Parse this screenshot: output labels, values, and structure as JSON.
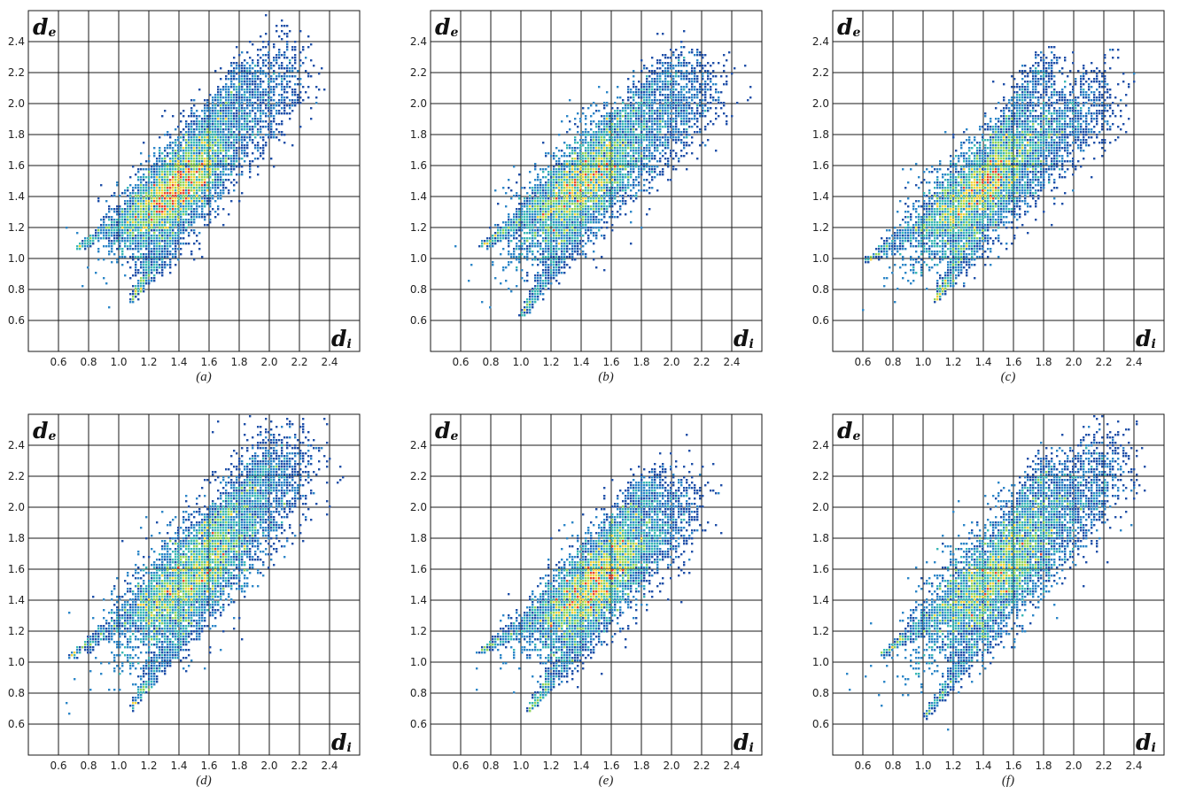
{
  "chart_data": [
    {
      "type": "heatmap",
      "panel_label": "(a)",
      "xlabel": "d",
      "xlabel_sub": "i",
      "ylabel": "d",
      "ylabel_sub": "e",
      "xlim": [
        0.4,
        2.6
      ],
      "ylim": [
        0.4,
        2.6
      ],
      "x_ticks": [
        "0.6",
        "0.8",
        "1.0",
        "1.2",
        "1.4",
        "1.6",
        "1.8",
        "2.0",
        "2.2",
        "2.4"
      ],
      "y_ticks": [
        "0.6",
        "0.8",
        "1.0",
        "1.2",
        "1.4",
        "1.6",
        "1.8",
        "2.0",
        "2.2",
        "2.4"
      ],
      "grid": true,
      "features": {
        "spike_top": [
          0.72,
          1.06
        ],
        "spike_bottom": [
          1.08,
          0.72
        ],
        "core": [
          1.38,
          1.45
        ],
        "core_width": 0.2,
        "far_tip": [
          2.12,
          2.24
        ],
        "upper_branch": [
          1.86,
          2.22
        ]
      }
    },
    {
      "type": "heatmap",
      "panel_label": "(b)",
      "xlabel": "d",
      "xlabel_sub": "i",
      "ylabel": "d",
      "ylabel_sub": "e",
      "xlim": [
        0.4,
        2.6
      ],
      "ylim": [
        0.4,
        2.6
      ],
      "x_ticks": [
        "0.6",
        "0.8",
        "1.0",
        "1.2",
        "1.4",
        "1.6",
        "1.8",
        "2.0",
        "2.2",
        "2.4"
      ],
      "y_ticks": [
        "0.6",
        "0.8",
        "1.0",
        "1.2",
        "1.4",
        "1.6",
        "1.8",
        "2.0",
        "2.2",
        "2.4"
      ],
      "grid": true,
      "features": {
        "spike_top": [
          0.74,
          1.08
        ],
        "spike_bottom": [
          1.0,
          0.62
        ],
        "core": [
          1.4,
          1.48
        ],
        "core_width": 0.24,
        "far_tip": [
          2.2,
          2.1
        ],
        "upper_branch": [
          2.05,
          2.28
        ]
      }
    },
    {
      "type": "heatmap",
      "panel_label": "(c)",
      "xlabel": "d",
      "xlabel_sub": "i",
      "ylabel": "d",
      "ylabel_sub": "e",
      "xlim": [
        0.4,
        2.6
      ],
      "ylim": [
        0.4,
        2.6
      ],
      "x_ticks": [
        "0.6",
        "0.8",
        "1.0",
        "1.2",
        "1.4",
        "1.6",
        "1.8",
        "2.0",
        "2.2",
        "2.4"
      ],
      "y_ticks": [
        "0.6",
        "0.8",
        "1.0",
        "1.2",
        "1.4",
        "1.6",
        "1.8",
        "2.0",
        "2.2",
        "2.4"
      ],
      "grid": true,
      "features": {
        "spike_top": [
          0.62,
          0.98
        ],
        "spike_bottom": [
          1.08,
          0.72
        ],
        "core": [
          1.38,
          1.46
        ],
        "core_width": 0.24,
        "far_tip": [
          2.15,
          2.05
        ],
        "upper_branch": [
          1.85,
          2.3
        ]
      }
    },
    {
      "type": "heatmap",
      "panel_label": "(d)",
      "xlabel": "d",
      "xlabel_sub": "i",
      "ylabel": "d",
      "ylabel_sub": "e",
      "xlim": [
        0.4,
        2.6
      ],
      "ylim": [
        0.4,
        2.6
      ],
      "x_ticks": [
        "0.6",
        "0.8",
        "1.0",
        "1.2",
        "1.4",
        "1.6",
        "1.8",
        "2.0",
        "2.2",
        "2.4"
      ],
      "y_ticks": [
        "0.6",
        "0.8",
        "1.0",
        "1.2",
        "1.4",
        "1.6",
        "1.8",
        "2.0",
        "2.2",
        "2.4"
      ],
      "grid": true,
      "features": {
        "spike_top": [
          0.66,
          1.02
        ],
        "spike_bottom": [
          1.08,
          0.7
        ],
        "core": [
          1.48,
          1.55
        ],
        "core_width": 0.26,
        "far_tip": [
          2.18,
          2.35
        ],
        "upper_branch": [
          2.0,
          2.3
        ]
      }
    },
    {
      "type": "heatmap",
      "panel_label": "(e)",
      "xlabel": "d",
      "xlabel_sub": "i",
      "ylabel": "d",
      "ylabel_sub": "e",
      "xlim": [
        0.4,
        2.6
      ],
      "ylim": [
        0.4,
        2.6
      ],
      "x_ticks": [
        "0.6",
        "0.8",
        "1.0",
        "1.2",
        "1.4",
        "1.6",
        "1.8",
        "2.0",
        "2.2",
        "2.4"
      ],
      "y_ticks": [
        "0.6",
        "0.8",
        "1.0",
        "1.2",
        "1.4",
        "1.6",
        "1.8",
        "2.0",
        "2.2",
        "2.4"
      ],
      "grid": true,
      "features": {
        "spike_top": [
          0.72,
          1.06
        ],
        "spike_bottom": [
          1.05,
          0.68
        ],
        "core": [
          1.48,
          1.5
        ],
        "core_width": 0.22,
        "far_tip": [
          2.05,
          2.05
        ],
        "upper_branch": [
          1.88,
          2.18
        ]
      }
    },
    {
      "type": "heatmap",
      "panel_label": "(f)",
      "xlabel": "d",
      "xlabel_sub": "i",
      "ylabel": "d",
      "ylabel_sub": "e",
      "xlim": [
        0.4,
        2.6
      ],
      "ylim": [
        0.4,
        2.6
      ],
      "x_ticks": [
        "0.6",
        "0.8",
        "1.0",
        "1.2",
        "1.4",
        "1.6",
        "1.8",
        "2.0",
        "2.2",
        "2.4"
      ],
      "y_ticks": [
        "0.6",
        "0.8",
        "1.0",
        "1.2",
        "1.4",
        "1.6",
        "1.8",
        "2.0",
        "2.2",
        "2.4"
      ],
      "grid": true,
      "features": {
        "spike_top": [
          0.72,
          1.04
        ],
        "spike_bottom": [
          1.02,
          0.65
        ],
        "core": [
          1.48,
          1.55
        ],
        "core_width": 0.28,
        "far_tip": [
          2.25,
          2.32
        ],
        "upper_branch": [
          1.85,
          2.3
        ]
      }
    }
  ],
  "colors": {
    "sparse": "#1f4fa8",
    "low": "#2c86c8",
    "mid": "#39b8b5",
    "med": "#8fd45a",
    "high": "#f2d23a",
    "peak": "#e8442a",
    "grid": "#1a1a1a"
  }
}
